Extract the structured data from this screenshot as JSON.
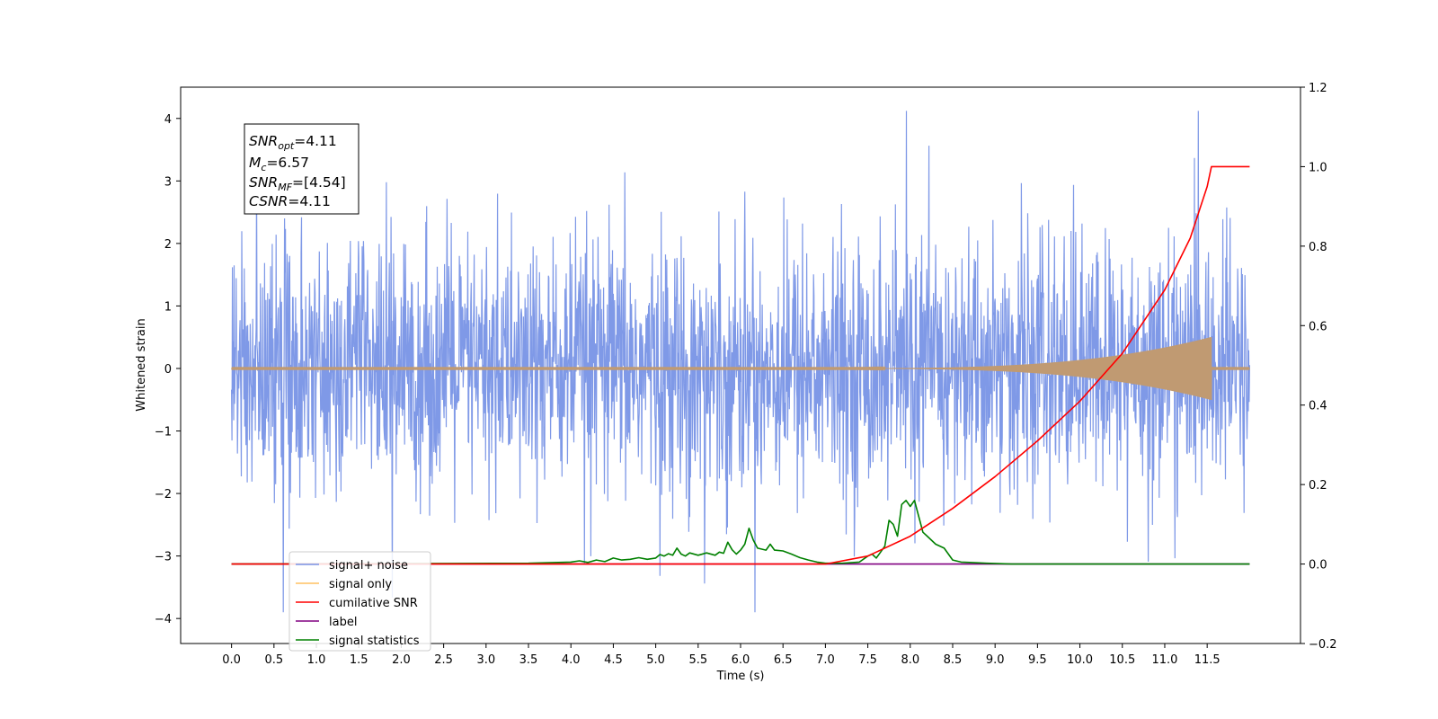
{
  "chart_data": {
    "type": "line",
    "title": "",
    "xlabel": "Time (s)",
    "ylabel": "Whitened strain",
    "xlim": [
      -0.6,
      12.6
    ],
    "ylim": [
      -4.4,
      4.5
    ],
    "y2lim": [
      -0.2,
      1.2
    ],
    "xticks": [
      "0.0",
      "0.5",
      "1.0",
      "1.5",
      "2.0",
      "2.5",
      "3.0",
      "3.5",
      "4.0",
      "4.5",
      "5.0",
      "5.5",
      "6.0",
      "6.5",
      "7.0",
      "7.5",
      "8.0",
      "8.5",
      "9.0",
      "9.5",
      "10.0",
      "10.5",
      "11.0",
      "11.5"
    ],
    "yticks": [
      "4",
      "3",
      "2",
      "1",
      "0",
      "−1",
      "−2",
      "−3",
      "−4"
    ],
    "y2ticks": [
      "1.2",
      "1.0",
      "0.8",
      "0.6",
      "0.4",
      "0.2",
      "0.0",
      "−0.2"
    ],
    "grid": false,
    "legend_position": "lower-left",
    "annotation": {
      "snr_opt": {
        "name": "SNR",
        "sub": "opt",
        "value": "=4.11"
      },
      "mc": {
        "name": "M",
        "sub": "c",
        "value": "=6.57"
      },
      "snr_mf": {
        "name": "SNR",
        "sub": "MF",
        "value": "=[4.54]"
      },
      "csnr": {
        "name": "CSNR",
        "sub": "",
        "value": "=4.11"
      }
    },
    "series": [
      {
        "name": "signal+ noise",
        "color": "#7893e6",
        "axis": "left",
        "description_values": {
          "x_start": 0.0,
          "x_end": 12.0,
          "mean": 0.0,
          "std": 1.0,
          "max": 4.12,
          "min": -3.9
        }
      },
      {
        "name": "signal only",
        "color": "#c09a72",
        "axis": "left",
        "description_values": {
          "x_start": 0.0,
          "x_end": 12.0,
          "chirp_start": 7.0,
          "chirp_end": 11.55,
          "peak_amplitude": 0.5
        }
      },
      {
        "name": "cumilative SNR",
        "color": "#ff0000",
        "axis": "right",
        "x": [
          0.0,
          7.0,
          7.5,
          8.0,
          8.5,
          9.0,
          9.5,
          10.0,
          10.5,
          11.0,
          11.3,
          11.5,
          11.55,
          12.0
        ],
        "values": [
          0.0,
          0.0,
          0.02,
          0.07,
          0.14,
          0.22,
          0.31,
          0.41,
          0.53,
          0.69,
          0.82,
          0.95,
          1.0,
          1.0
        ]
      },
      {
        "name": "label",
        "color": "#800080",
        "axis": "right",
        "x": [
          0.0,
          12.0
        ],
        "values": [
          0.0,
          0.0
        ]
      },
      {
        "name": "signal statistics",
        "color": "#008000",
        "axis": "right",
        "x": [
          0.0,
          3.5,
          4.0,
          4.1,
          4.2,
          4.3,
          4.4,
          4.5,
          4.6,
          4.7,
          4.8,
          4.9,
          5.0,
          5.05,
          5.1,
          5.15,
          5.2,
          5.25,
          5.3,
          5.35,
          5.4,
          5.5,
          5.6,
          5.7,
          5.75,
          5.8,
          5.85,
          5.9,
          5.95,
          6.0,
          6.05,
          6.1,
          6.15,
          6.2,
          6.3,
          6.35,
          6.4,
          6.5,
          6.6,
          6.7,
          6.8,
          6.9,
          7.0,
          7.2,
          7.4,
          7.5,
          7.55,
          7.6,
          7.65,
          7.7,
          7.75,
          7.8,
          7.85,
          7.9,
          7.95,
          8.0,
          8.05,
          8.1,
          8.15,
          8.2,
          8.3,
          8.4,
          8.5,
          8.6,
          8.7,
          8.9,
          9.2,
          12.0
        ],
        "values": [
          0.0,
          0.002,
          0.005,
          0.008,
          0.004,
          0.01,
          0.006,
          0.015,
          0.01,
          0.012,
          0.016,
          0.012,
          0.015,
          0.024,
          0.02,
          0.026,
          0.022,
          0.04,
          0.025,
          0.02,
          0.028,
          0.022,
          0.028,
          0.022,
          0.03,
          0.027,
          0.055,
          0.036,
          0.025,
          0.035,
          0.05,
          0.09,
          0.06,
          0.04,
          0.035,
          0.05,
          0.035,
          0.033,
          0.025,
          0.016,
          0.01,
          0.005,
          0.002,
          0.002,
          0.005,
          0.02,
          0.025,
          0.015,
          0.03,
          0.045,
          0.11,
          0.1,
          0.07,
          0.15,
          0.16,
          0.145,
          0.16,
          0.12,
          0.08,
          0.07,
          0.05,
          0.04,
          0.01,
          0.005,
          0.004,
          0.002,
          0.0,
          0.0
        ]
      }
    ]
  }
}
